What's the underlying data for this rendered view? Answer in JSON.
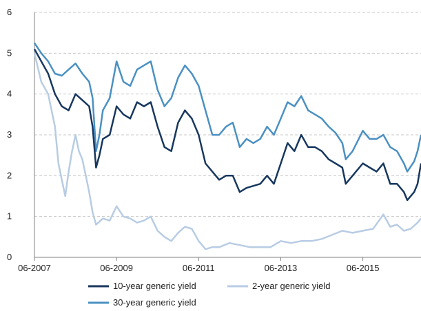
{
  "chart_data": {
    "type": "line",
    "x_ticks": [
      "06-2007",
      "06-2009",
      "06-2011",
      "06-2013",
      "06-2015"
    ],
    "ylim": [
      0,
      6
    ],
    "y_ticks": [
      "0",
      "1",
      "2",
      "3",
      "4",
      "5",
      "6"
    ],
    "grid": "horizontal dashed",
    "legend_position": "bottom",
    "series": [
      {
        "name": "10-year generic yield",
        "color": "#17375e",
        "points": [
          [
            "2007-06",
            5.1
          ],
          [
            "2007-08",
            4.8
          ],
          [
            "2007-10",
            4.5
          ],
          [
            "2007-12",
            4.0
          ],
          [
            "2008-02",
            3.7
          ],
          [
            "2008-04",
            3.6
          ],
          [
            "2008-06",
            4.0
          ],
          [
            "2008-08",
            3.85
          ],
          [
            "2008-10",
            3.7
          ],
          [
            "2008-11",
            3.2
          ],
          [
            "2008-12",
            2.2
          ],
          [
            "2009-01",
            2.5
          ],
          [
            "2009-02",
            2.9
          ],
          [
            "2009-04",
            3.0
          ],
          [
            "2009-06",
            3.7
          ],
          [
            "2009-08",
            3.5
          ],
          [
            "2009-10",
            3.4
          ],
          [
            "2009-12",
            3.8
          ],
          [
            "2010-02",
            3.7
          ],
          [
            "2010-04",
            3.8
          ],
          [
            "2010-06",
            3.2
          ],
          [
            "2010-08",
            2.7
          ],
          [
            "2010-10",
            2.6
          ],
          [
            "2010-12",
            3.3
          ],
          [
            "2011-02",
            3.6
          ],
          [
            "2011-04",
            3.4
          ],
          [
            "2011-06",
            3.0
          ],
          [
            "2011-08",
            2.3
          ],
          [
            "2011-10",
            2.1
          ],
          [
            "2011-12",
            1.9
          ],
          [
            "2012-02",
            2.0
          ],
          [
            "2012-04",
            2.0
          ],
          [
            "2012-06",
            1.6
          ],
          [
            "2012-08",
            1.7
          ],
          [
            "2012-10",
            1.75
          ],
          [
            "2012-12",
            1.8
          ],
          [
            "2013-02",
            2.0
          ],
          [
            "2013-04",
            1.8
          ],
          [
            "2013-06",
            2.3
          ],
          [
            "2013-08",
            2.8
          ],
          [
            "2013-10",
            2.6
          ],
          [
            "2013-12",
            3.0
          ],
          [
            "2014-02",
            2.7
          ],
          [
            "2014-04",
            2.7
          ],
          [
            "2014-06",
            2.6
          ],
          [
            "2014-08",
            2.4
          ],
          [
            "2014-10",
            2.3
          ],
          [
            "2014-12",
            2.2
          ],
          [
            "2015-01",
            1.8
          ],
          [
            "2015-03",
            2.0
          ],
          [
            "2015-06",
            2.3
          ],
          [
            "2015-08",
            2.2
          ],
          [
            "2015-10",
            2.1
          ],
          [
            "2015-12",
            2.3
          ],
          [
            "2016-02",
            1.8
          ],
          [
            "2016-04",
            1.8
          ],
          [
            "2016-06",
            1.6
          ],
          [
            "2016-07",
            1.4
          ],
          [
            "2016-09",
            1.6
          ],
          [
            "2016-10",
            1.8
          ],
          [
            "2016-11",
            2.3
          ]
        ]
      },
      {
        "name": "2-year generic yield",
        "color": "#b8cce4",
        "points": [
          [
            "2007-06",
            5.0
          ],
          [
            "2007-08",
            4.3
          ],
          [
            "2007-10",
            4.0
          ],
          [
            "2007-12",
            3.2
          ],
          [
            "2008-01",
            2.3
          ],
          [
            "2008-02",
            1.9
          ],
          [
            "2008-03",
            1.5
          ],
          [
            "2008-04",
            2.1
          ],
          [
            "2008-05",
            2.6
          ],
          [
            "2008-06",
            3.0
          ],
          [
            "2008-07",
            2.6
          ],
          [
            "2008-08",
            2.4
          ],
          [
            "2008-09",
            2.0
          ],
          [
            "2008-10",
            1.6
          ],
          [
            "2008-11",
            1.1
          ],
          [
            "2008-12",
            0.8
          ],
          [
            "2009-02",
            0.95
          ],
          [
            "2009-04",
            0.9
          ],
          [
            "2009-06",
            1.25
          ],
          [
            "2009-08",
            1.0
          ],
          [
            "2009-10",
            0.95
          ],
          [
            "2009-12",
            0.85
          ],
          [
            "2010-02",
            0.9
          ],
          [
            "2010-04",
            1.0
          ],
          [
            "2010-06",
            0.65
          ],
          [
            "2010-08",
            0.5
          ],
          [
            "2010-10",
            0.4
          ],
          [
            "2010-12",
            0.6
          ],
          [
            "2011-02",
            0.75
          ],
          [
            "2011-04",
            0.7
          ],
          [
            "2011-06",
            0.4
          ],
          [
            "2011-08",
            0.2
          ],
          [
            "2011-10",
            0.25
          ],
          [
            "2011-12",
            0.25
          ],
          [
            "2012-03",
            0.35
          ],
          [
            "2012-06",
            0.3
          ],
          [
            "2012-09",
            0.25
          ],
          [
            "2012-12",
            0.25
          ],
          [
            "2013-03",
            0.25
          ],
          [
            "2013-06",
            0.4
          ],
          [
            "2013-09",
            0.35
          ],
          [
            "2013-12",
            0.4
          ],
          [
            "2014-03",
            0.4
          ],
          [
            "2014-06",
            0.45
          ],
          [
            "2014-09",
            0.55
          ],
          [
            "2014-12",
            0.65
          ],
          [
            "2015-03",
            0.6
          ],
          [
            "2015-06",
            0.65
          ],
          [
            "2015-09",
            0.7
          ],
          [
            "2015-12",
            1.05
          ],
          [
            "2016-02",
            0.75
          ],
          [
            "2016-04",
            0.8
          ],
          [
            "2016-06",
            0.65
          ],
          [
            "2016-08",
            0.7
          ],
          [
            "2016-10",
            0.85
          ],
          [
            "2016-11",
            0.95
          ]
        ]
      },
      {
        "name": "30-year generic yield",
        "color": "#4a90c2",
        "points": [
          [
            "2007-06",
            5.25
          ],
          [
            "2007-08",
            5.0
          ],
          [
            "2007-10",
            4.8
          ],
          [
            "2007-12",
            4.5
          ],
          [
            "2008-02",
            4.45
          ],
          [
            "2008-04",
            4.6
          ],
          [
            "2008-06",
            4.75
          ],
          [
            "2008-08",
            4.5
          ],
          [
            "2008-10",
            4.3
          ],
          [
            "2008-11",
            3.9
          ],
          [
            "2008-12",
            2.6
          ],
          [
            "2009-01",
            3.0
          ],
          [
            "2009-02",
            3.6
          ],
          [
            "2009-04",
            3.9
          ],
          [
            "2009-06",
            4.8
          ],
          [
            "2009-08",
            4.3
          ],
          [
            "2009-10",
            4.2
          ],
          [
            "2009-12",
            4.6
          ],
          [
            "2010-02",
            4.7
          ],
          [
            "2010-04",
            4.8
          ],
          [
            "2010-06",
            4.1
          ],
          [
            "2010-08",
            3.7
          ],
          [
            "2010-10",
            3.9
          ],
          [
            "2010-12",
            4.4
          ],
          [
            "2011-02",
            4.7
          ],
          [
            "2011-04",
            4.5
          ],
          [
            "2011-06",
            4.2
          ],
          [
            "2011-08",
            3.6
          ],
          [
            "2011-10",
            3.0
          ],
          [
            "2011-12",
            3.0
          ],
          [
            "2012-02",
            3.2
          ],
          [
            "2012-04",
            3.3
          ],
          [
            "2012-06",
            2.7
          ],
          [
            "2012-08",
            2.9
          ],
          [
            "2012-10",
            2.8
          ],
          [
            "2012-12",
            2.9
          ],
          [
            "2013-02",
            3.2
          ],
          [
            "2013-04",
            3.0
          ],
          [
            "2013-06",
            3.4
          ],
          [
            "2013-08",
            3.8
          ],
          [
            "2013-10",
            3.7
          ],
          [
            "2013-12",
            3.95
          ],
          [
            "2014-02",
            3.6
          ],
          [
            "2014-04",
            3.5
          ],
          [
            "2014-06",
            3.4
          ],
          [
            "2014-08",
            3.2
          ],
          [
            "2014-10",
            3.05
          ],
          [
            "2014-12",
            2.8
          ],
          [
            "2015-01",
            2.4
          ],
          [
            "2015-03",
            2.6
          ],
          [
            "2015-06",
            3.1
          ],
          [
            "2015-08",
            2.9
          ],
          [
            "2015-10",
            2.9
          ],
          [
            "2015-12",
            3.0
          ],
          [
            "2016-02",
            2.7
          ],
          [
            "2016-04",
            2.6
          ],
          [
            "2016-06",
            2.3
          ],
          [
            "2016-07",
            2.1
          ],
          [
            "2016-09",
            2.35
          ],
          [
            "2016-10",
            2.6
          ],
          [
            "2016-11",
            3.0
          ]
        ]
      }
    ]
  }
}
